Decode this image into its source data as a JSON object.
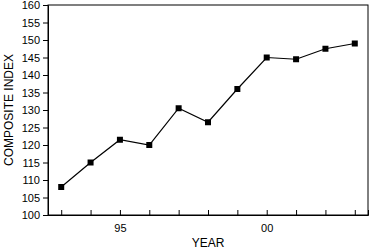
{
  "chart_data": {
    "type": "line",
    "x_label": "YEAR",
    "y_label": "COMPOSITE INDEX",
    "categories": [
      null,
      null,
      "95",
      null,
      null,
      null,
      null,
      "00",
      null,
      null,
      null
    ],
    "series": [
      {
        "color": "#000000",
        "marker": "square",
        "line_style": "solid",
        "values": [
          108,
          115,
          121.5,
          120,
          130.5,
          126.5,
          136,
          145,
          144.5,
          147.5,
          149
        ]
      }
    ],
    "ylim": [
      100,
      160
    ],
    "yticks": [
      100,
      105,
      110,
      115,
      120,
      125,
      130,
      135,
      140,
      145,
      150,
      155,
      160
    ],
    "grid": false
  }
}
